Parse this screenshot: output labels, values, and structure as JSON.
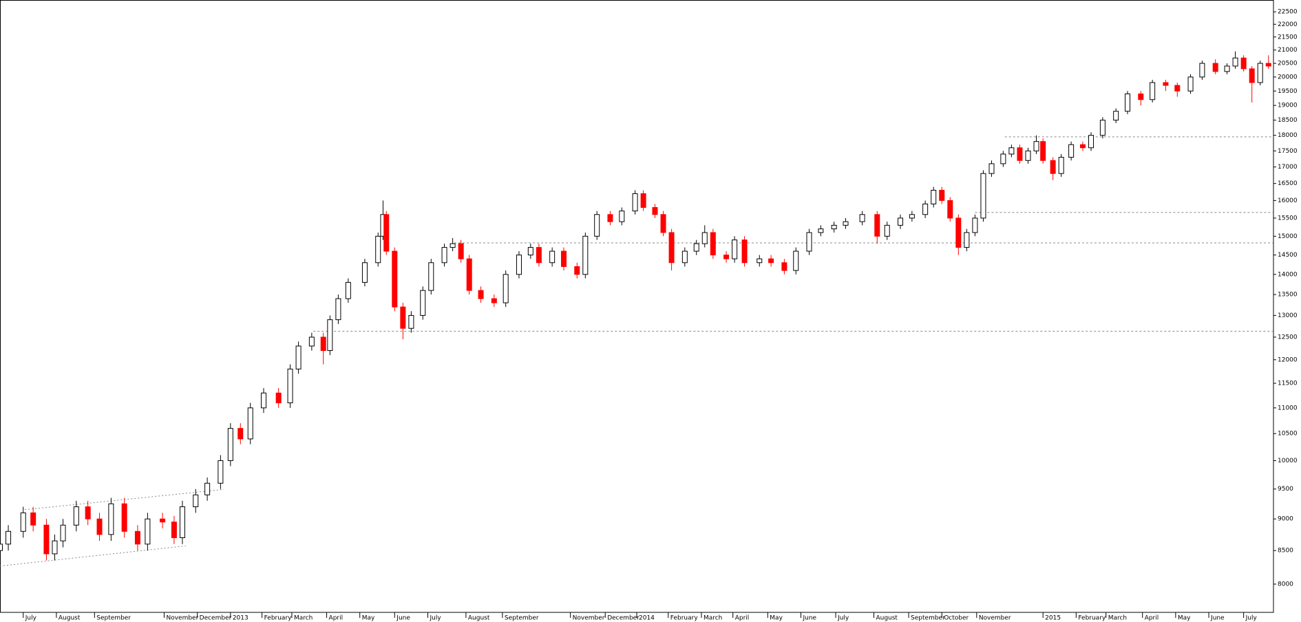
{
  "chart_data": {
    "type": "candlestick",
    "log_scale": true,
    "grid": false,
    "up_color": "#000000",
    "down_color": "#ff0000",
    "reference_line_color": "#888888",
    "xlim": [
      0,
      768
    ],
    "ylim": [
      7602,
      22986
    ],
    "xticks": [
      {
        "value": 14,
        "label": "July"
      },
      {
        "value": 34,
        "label": "August"
      },
      {
        "value": 57,
        "label": "September"
      },
      {
        "value": 99,
        "label": "November"
      },
      {
        "value": 119,
        "label": "December"
      },
      {
        "value": 139,
        "label": "2013"
      },
      {
        "value": 158,
        "label": "February"
      },
      {
        "value": 176,
        "label": "March"
      },
      {
        "value": 197,
        "label": "April"
      },
      {
        "value": 217,
        "label": "May"
      },
      {
        "value": 238,
        "label": "June"
      },
      {
        "value": 258,
        "label": "July"
      },
      {
        "value": 281,
        "label": "August"
      },
      {
        "value": 303,
        "label": "September"
      },
      {
        "value": 344,
        "label": "November"
      },
      {
        "value": 365,
        "label": "December"
      },
      {
        "value": 384,
        "label": "2014"
      },
      {
        "value": 403,
        "label": "February"
      },
      {
        "value": 423,
        "label": "March"
      },
      {
        "value": 442,
        "label": "April"
      },
      {
        "value": 463,
        "label": "May"
      },
      {
        "value": 483,
        "label": "June"
      },
      {
        "value": 504,
        "label": "July"
      },
      {
        "value": 527,
        "label": "August"
      },
      {
        "value": 548,
        "label": "September"
      },
      {
        "value": 568,
        "label": "October"
      },
      {
        "value": 589,
        "label": "November"
      },
      {
        "value": 629,
        "label": "2015"
      },
      {
        "value": 649,
        "label": "February"
      },
      {
        "value": 667,
        "label": "March"
      },
      {
        "value": 689,
        "label": "April"
      },
      {
        "value": 709,
        "label": "May"
      },
      {
        "value": 729,
        "label": "June"
      },
      {
        "value": 750,
        "label": "July"
      }
    ],
    "yticks": [
      8000,
      8500,
      9000,
      9500,
      10000,
      10500,
      11000,
      11500,
      12000,
      12500,
      13000,
      13500,
      14000,
      14500,
      15000,
      15500,
      16000,
      16500,
      17000,
      17500,
      18000,
      18500,
      19000,
      19500,
      20000,
      20500,
      21000,
      21500,
      22000,
      22500
    ],
    "x": [
      0,
      5,
      14,
      20,
      28,
      33,
      38,
      46,
      53,
      60,
      67,
      75,
      83,
      89,
      98,
      105,
      110,
      118,
      125,
      133,
      139,
      145,
      151,
      159,
      168,
      175,
      180,
      188,
      195,
      199,
      204,
      210,
      220,
      228,
      231,
      233,
      238,
      243,
      248,
      255,
      260,
      268,
      273,
      278,
      283,
      290,
      298,
      305,
      313,
      320,
      325,
      333,
      340,
      348,
      353,
      360,
      368,
      375,
      383,
      388,
      395,
      400,
      405,
      413,
      420,
      425,
      430,
      438,
      443,
      449,
      458,
      465,
      473,
      480,
      488,
      495,
      503,
      510,
      520,
      529,
      535,
      543,
      550,
      558,
      563,
      568,
      573,
      578,
      583,
      588,
      593,
      598,
      605,
      610,
      615,
      620,
      625,
      629,
      635,
      640,
      646,
      653,
      658,
      665,
      673,
      680,
      688,
      695,
      703,
      710,
      718,
      725,
      733,
      740,
      745,
      750,
      755,
      760,
      765
    ],
    "open": [
      8500,
      8600,
      8800,
      9100,
      8900,
      8450,
      8650,
      8900,
      9200,
      9000,
      8750,
      9250,
      8800,
      8600,
      9000,
      8950,
      8700,
      9200,
      9400,
      9600,
      10000,
      10600,
      10400,
      11000,
      11300,
      11100,
      11800,
      12300,
      12500,
      12200,
      12900,
      13400,
      13800,
      14300,
      15000,
      15600,
      14600,
      13200,
      12700,
      13000,
      13600,
      14300,
      14700,
      14800,
      14400,
      13600,
      13400,
      13300,
      14000,
      14500,
      14700,
      14300,
      14600,
      14200,
      14000,
      15000,
      15600,
      15400,
      15700,
      16200,
      15800,
      15600,
      15100,
      14300,
      14600,
      14800,
      15100,
      14500,
      14400,
      14900,
      14300,
      14400,
      14300,
      14100,
      14600,
      15100,
      15200,
      15300,
      15400,
      15600,
      15000,
      15300,
      15500,
      15600,
      15900,
      16300,
      16000,
      15500,
      14700,
      15100,
      15500,
      16800,
      17100,
      17400,
      17600,
      17200,
      17500,
      17800,
      17200,
      16800,
      17300,
      17700,
      17600,
      18000,
      18500,
      18800,
      19400,
      19200,
      19800,
      19700,
      19500,
      20000,
      20500,
      20200,
      20400,
      20700,
      20300,
      19800,
      20500
    ],
    "high": [
      8700,
      8900,
      9200,
      9200,
      9000,
      8750,
      9000,
      9300,
      9300,
      9100,
      9350,
      9350,
      8900,
      9100,
      9100,
      9050,
      9300,
      9500,
      9700,
      10100,
      10700,
      10700,
      11100,
      11400,
      11400,
      11900,
      12400,
      12600,
      12600,
      13000,
      13500,
      13900,
      14400,
      15100,
      16000,
      15700,
      14700,
      13300,
      13100,
      13700,
      14400,
      14800,
      14950,
      14900,
      14500,
      13700,
      13500,
      14100,
      14600,
      14800,
      14800,
      14700,
      14700,
      14300,
      15100,
      15700,
      15700,
      15800,
      16300,
      16300,
      15900,
      15700,
      15200,
      14700,
      14900,
      15300,
      15200,
      14600,
      15000,
      15000,
      14500,
      14500,
      14400,
      14700,
      15200,
      15300,
      15400,
      15500,
      15700,
      15700,
      15400,
      15600,
      15700,
      16000,
      16400,
      16400,
      16100,
      15600,
      15200,
      15600,
      16900,
      17200,
      17500,
      17700,
      17700,
      17600,
      18000,
      17900,
      17300,
      17400,
      17800,
      17800,
      18100,
      18600,
      18900,
      19500,
      19500,
      19900,
      19900,
      19800,
      20100,
      20600,
      20650,
      20500,
      20950,
      20800,
      20400,
      20600,
      20800
    ],
    "low": [
      8400,
      8500,
      8700,
      8800,
      8350,
      8350,
      8550,
      8800,
      8900,
      8650,
      8650,
      8700,
      8500,
      8500,
      8850,
      8600,
      8600,
      9100,
      9300,
      9500,
      9900,
      10300,
      10300,
      10900,
      11000,
      11000,
      11700,
      12200,
      11900,
      12100,
      12800,
      13300,
      13700,
      14200,
      14900,
      14500,
      13100,
      12450,
      12600,
      12900,
      13500,
      14200,
      14600,
      14300,
      13500,
      13300,
      13200,
      13200,
      13900,
      14400,
      14200,
      14200,
      14100,
      13900,
      13900,
      14900,
      15300,
      15300,
      15600,
      15700,
      15500,
      15000,
      14100,
      14200,
      14500,
      14700,
      14400,
      14300,
      14300,
      14200,
      14200,
      14200,
      14000,
      14000,
      14500,
      15000,
      15100,
      15200,
      15300,
      14800,
      14900,
      15200,
      15400,
      15500,
      15800,
      15900,
      15400,
      14500,
      14600,
      15000,
      15400,
      16700,
      17000,
      17300,
      17100,
      17100,
      17400,
      17100,
      16600,
      16700,
      17200,
      17500,
      17500,
      17900,
      18400,
      18700,
      19000,
      19100,
      19500,
      19300,
      19400,
      19900,
      20100,
      20100,
      20300,
      20200,
      19100,
      19700,
      20300
    ],
    "close": [
      8600,
      8800,
      9100,
      8900,
      8450,
      8650,
      8900,
      9200,
      9000,
      8750,
      9250,
      8800,
      8600,
      9000,
      8950,
      8700,
      9200,
      9400,
      9600,
      10000,
      10600,
      10400,
      11000,
      11300,
      11100,
      11800,
      12300,
      12500,
      12200,
      12900,
      13400,
      13800,
      14300,
      15000,
      15600,
      14600,
      13200,
      12700,
      13000,
      13600,
      14300,
      14700,
      14800,
      14400,
      13600,
      13400,
      13300,
      14000,
      14500,
      14700,
      14300,
      14600,
      14200,
      14000,
      15000,
      15600,
      15400,
      15700,
      16200,
      15800,
      15600,
      15100,
      14300,
      14600,
      14800,
      15100,
      14500,
      14400,
      14900,
      14300,
      14400,
      14300,
      14100,
      14600,
      15100,
      15200,
      15300,
      15400,
      15600,
      15000,
      15300,
      15500,
      15600,
      15900,
      16300,
      16000,
      15500,
      14700,
      15100,
      15500,
      16800,
      17100,
      17400,
      17600,
      17200,
      17500,
      17800,
      17200,
      16800,
      17300,
      17700,
      17600,
      18000,
      18500,
      18800,
      19400,
      19200,
      19800,
      19700,
      19500,
      20000,
      20500,
      20200,
      20400,
      20700,
      20300,
      19800,
      20500,
      20400
    ],
    "reference_lines": [
      {
        "y": 12635,
        "x_start": 189
      },
      {
        "y": 14820,
        "x_start": 274
      },
      {
        "y": 15660,
        "x_start": 588
      },
      {
        "y": 17950,
        "x_start": 606
      }
    ],
    "trendlines": [
      {
        "x": [
          15,
          135
        ],
        "y": [
          9152,
          9493
        ]
      },
      {
        "x": [
          0,
          112
        ],
        "y": [
          8266,
          8572
        ]
      }
    ]
  }
}
